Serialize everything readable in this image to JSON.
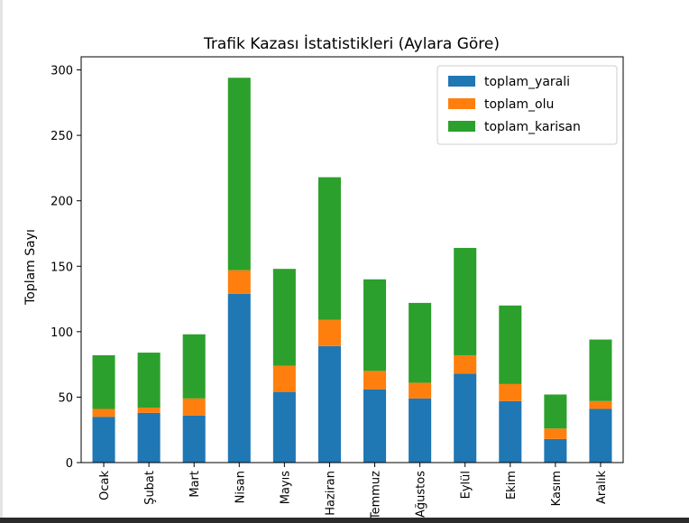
{
  "chart_data": {
    "type": "bar",
    "stacked": true,
    "title": "Trafik Kazası İstatistikleri (Aylara Göre)",
    "xlabel": "",
    "ylabel": "Toplam Sayı",
    "ylim": [
      0,
      310
    ],
    "yticks": [
      0,
      50,
      100,
      150,
      200,
      250,
      300
    ],
    "grid": false,
    "legend_position": "top-right",
    "categories": [
      "Ocak",
      "Şubat",
      "Mart",
      "Nisan",
      "Mayıs",
      "Haziran",
      "Temmuz",
      "Ağustos",
      "Eylül",
      "Ekim",
      "Kasım",
      "Aralık"
    ],
    "series": [
      {
        "name": "toplam_yarali",
        "color": "#1f77b4",
        "values": [
          35,
          38,
          36,
          129,
          54,
          89,
          56,
          49,
          68,
          47,
          18,
          41
        ]
      },
      {
        "name": "toplam_olu",
        "color": "#ff7f0e",
        "values": [
          6,
          4,
          13,
          18,
          20,
          20,
          14,
          12,
          14,
          13,
          8,
          6
        ]
      },
      {
        "name": "toplam_karisan",
        "color": "#2ca02c",
        "values": [
          41,
          42,
          49,
          147,
          74,
          109,
          70,
          61,
          82,
          60,
          26,
          47
        ]
      }
    ]
  }
}
